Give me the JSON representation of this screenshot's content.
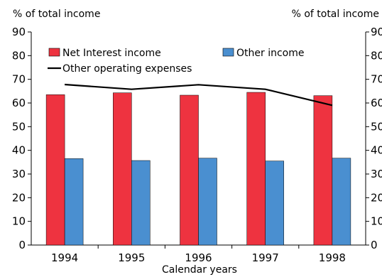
{
  "chart_data": {
    "type": "bar",
    "left_axis_label": "% of total income",
    "right_axis_label": "% of total income",
    "xlabel": "Calendar years",
    "categories": [
      "1994",
      "1995",
      "1996",
      "1997",
      "1998"
    ],
    "ylim": [
      0,
      90
    ],
    "yticks": [
      0,
      10,
      20,
      30,
      40,
      50,
      60,
      70,
      80,
      90
    ],
    "series": [
      {
        "name": "Net Interest income",
        "kind": "bar",
        "color": "#ee3340",
        "values": [
          63.5,
          64.3,
          63.3,
          64.5,
          63.1
        ]
      },
      {
        "name": "Other income",
        "kind": "bar",
        "color": "#4a8fd0",
        "values": [
          36.5,
          35.7,
          36.7,
          35.5,
          36.7
        ]
      },
      {
        "name": "Other operating expenses",
        "kind": "line",
        "color": "#000000",
        "values": [
          67.8,
          65.8,
          67.7,
          65.8,
          59.0
        ]
      }
    ],
    "grid": false,
    "legend_position": "top"
  }
}
